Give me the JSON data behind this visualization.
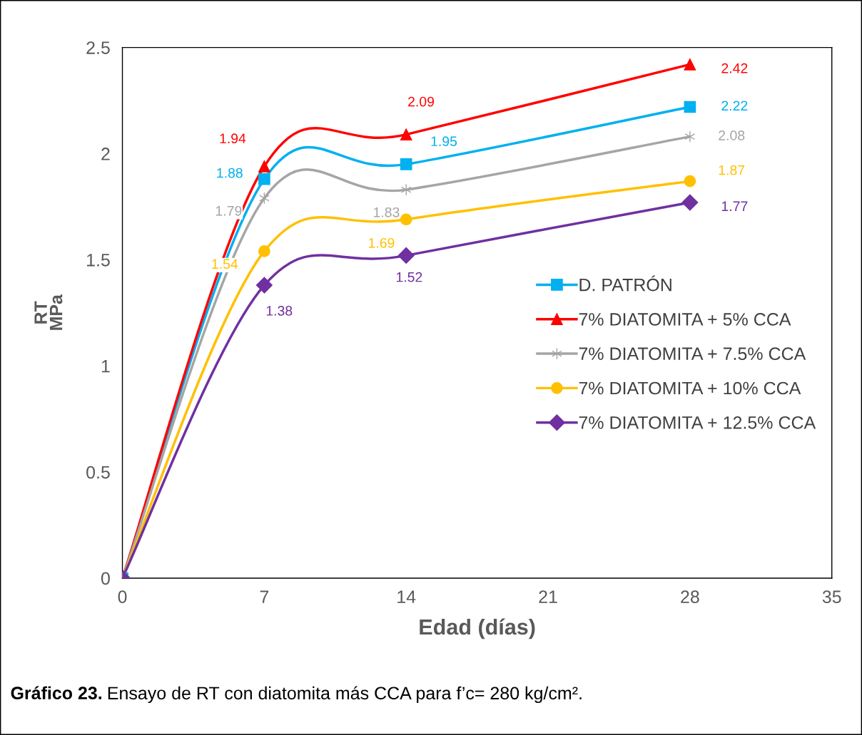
{
  "chart_data": {
    "type": "line",
    "xlabel": "Edad (días)",
    "ylabel": "RT\nMPa",
    "x": [
      0,
      7,
      14,
      28
    ],
    "xlim": [
      0,
      35
    ],
    "xticks": [
      0,
      7,
      14,
      21,
      28,
      35
    ],
    "ylim": [
      0,
      2.5
    ],
    "yticks": [
      0,
      0.5,
      1,
      1.5,
      2,
      2.5
    ],
    "grid": false,
    "legend": "right",
    "line_style": "solid",
    "series": [
      {
        "name": "D. PATRÓN",
        "color": "#00b0f0",
        "marker": "square",
        "values": [
          0,
          1.88,
          1.95,
          2.22
        ],
        "value_labels": [
          null,
          "1.88",
          "1.95",
          "2.22"
        ]
      },
      {
        "name": "7% DIATOMITA + 5% CCA",
        "color": "#ff0000",
        "marker": "triangle",
        "values": [
          0,
          1.94,
          2.09,
          2.42
        ],
        "value_labels": [
          null,
          "1.94",
          "2.09",
          "2.42"
        ]
      },
      {
        "name": "7% DIATOMITA + 7.5% CCA",
        "color": "#a5a5a5",
        "marker": "cross",
        "values": [
          0,
          1.79,
          1.83,
          2.08
        ],
        "value_labels": [
          null,
          "1.79",
          "1.83",
          "2.08"
        ]
      },
      {
        "name": "7% DIATOMITA + 10% CCA",
        "color": "#ffc000",
        "marker": "circle",
        "values": [
          0,
          1.54,
          1.69,
          1.87
        ],
        "value_labels": [
          null,
          "1.54",
          "1.69",
          "1.87"
        ]
      },
      {
        "name": "7% DIATOMITA + 12.5% CCA",
        "color": "#7030a0",
        "marker": "diamond",
        "values": [
          0,
          1.38,
          1.52,
          1.77
        ],
        "value_labels": [
          null,
          "1.38",
          "1.52",
          "1.77"
        ]
      }
    ],
    "annotations": [
      "Gráfico 23.",
      "Ensayo de RT con diatomita más CCA para f’c= 280 kg/cm²."
    ]
  }
}
